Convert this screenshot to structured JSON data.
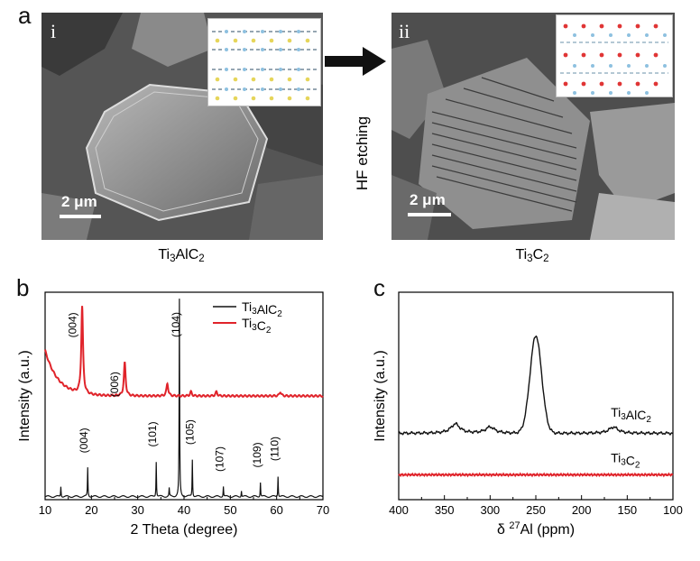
{
  "figure": {
    "panels": {
      "a": {
        "letter": "a",
        "left": {
          "roman": "i",
          "scale": "2 μm",
          "caption_main": "Ti",
          "caption_sub1": "3",
          "caption_mid": "AlC",
          "caption_sub2": "2"
        },
        "arrow_label": "HF etching",
        "right": {
          "roman": "ii",
          "scale": "2 μm",
          "caption_main": "Ti",
          "caption_sub1": "3",
          "caption_mid": "C",
          "caption_sub2": "2"
        }
      },
      "b": {
        "letter": "b"
      },
      "c": {
        "letter": "c"
      }
    },
    "colors": {
      "black_series": "#111111",
      "red_series": "#e0232a"
    }
  },
  "chart_data": [
    {
      "type": "line",
      "panel": "b",
      "xlabel": "2 Theta (degree)",
      "ylabel": "Intensity (a.u.)",
      "xlim": [
        10,
        70
      ],
      "xticks": [
        10,
        20,
        30,
        40,
        50,
        60,
        70
      ],
      "yticks": [],
      "legend_placement": "top-right",
      "series": [
        {
          "name": "Ti3AlC2",
          "color": "#111111",
          "peaks": [
            [
              13.4,
              0.05
            ],
            [
              19.2,
              0.14
            ],
            [
              34.0,
              0.17
            ],
            [
              36.8,
              0.04
            ],
            [
              39.0,
              0.95
            ],
            [
              41.8,
              0.18
            ],
            [
              48.5,
              0.05
            ],
            [
              52.4,
              0.03
            ],
            [
              56.5,
              0.07
            ],
            [
              60.3,
              0.1
            ]
          ]
        },
        {
          "name": "Ti3C2",
          "color": "#e0232a",
          "baseline": 0.5,
          "peaks": [
            [
              18.0,
              0.42
            ],
            [
              27.2,
              0.16
            ],
            [
              36.4,
              0.06
            ],
            [
              41.5,
              0.02
            ],
            [
              47.0,
              0.02
            ],
            [
              60.8,
              0.02
            ]
          ]
        }
      ],
      "annotations": [
        {
          "label": "(004)",
          "x": 16.7,
          "series": "Ti3C2"
        },
        {
          "label": "(006)",
          "x": 25.8,
          "series": "Ti3C2"
        },
        {
          "label": "(004)",
          "x": 19.2,
          "series": "Ti3AlC2"
        },
        {
          "label": "(101)",
          "x": 34.0,
          "series": "Ti3AlC2"
        },
        {
          "label": "(104)",
          "x": 39.0,
          "series": "Ti3AlC2"
        },
        {
          "label": "(105)",
          "x": 42.0,
          "series": "Ti3AlC2"
        },
        {
          "label": "(107)",
          "x": 48.5,
          "series": "Ti3AlC2"
        },
        {
          "label": "(109)",
          "x": 56.6,
          "series": "Ti3AlC2"
        },
        {
          "label": "(110)",
          "x": 60.4,
          "series": "Ti3AlC2"
        }
      ]
    },
    {
      "type": "line",
      "panel": "c",
      "xlabel": "δ 27Al (ppm)",
      "ylabel": "Intensity (a.u.)",
      "xlim": [
        400,
        100
      ],
      "xticks": [
        400,
        350,
        300,
        250,
        200,
        150,
        100
      ],
      "yticks": [],
      "series": [
        {
          "name": "Ti3AlC2",
          "color": "#111111",
          "baseline": 0.32,
          "peaks": [
            [
              338,
              0.045
            ],
            [
              300,
              0.03
            ],
            [
              250,
              0.47
            ],
            [
              165,
              0.03
            ]
          ]
        },
        {
          "name": "Ti3C2",
          "color": "#e0232a",
          "baseline": 0.12,
          "peaks": []
        }
      ]
    }
  ]
}
